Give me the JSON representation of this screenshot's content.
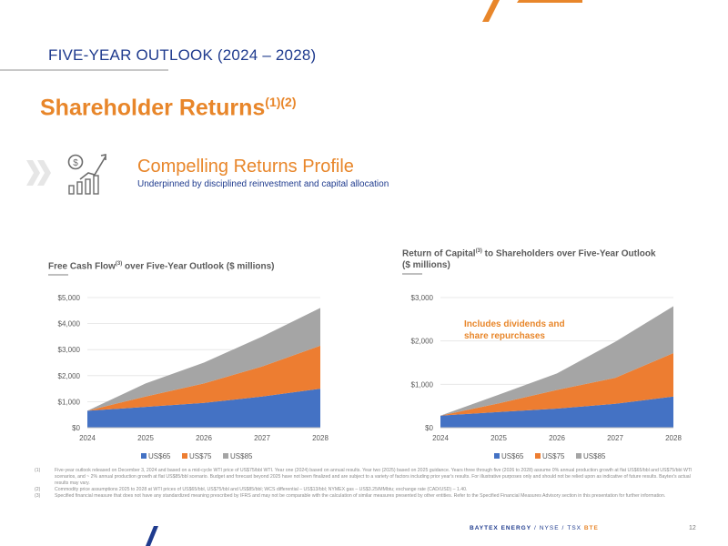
{
  "header": {
    "section_title": "FIVE-YEAR OUTLOOK (2024 – 2028)",
    "main_title": "Shareholder Returns",
    "main_title_sup": "(1)(2)"
  },
  "profile": {
    "title": "Compelling Returns Profile",
    "subtitle": "Underpinned by disciplined reinvestment and capital allocation"
  },
  "colors": {
    "navy": "#1f3b8e",
    "orange": "#e8862a",
    "series_blue": "#4472c4",
    "series_orange": "#ed7d31",
    "series_gray": "#a5a5a5"
  },
  "chart_data": [
    {
      "type": "area",
      "title": "Free Cash Flow",
      "title_sup": "(3)",
      "title_suffix": " over Five-Year Outlook ($ millions)",
      "x": [
        "2024",
        "2025",
        "2026",
        "2027",
        "2028"
      ],
      "y_ticks": [
        "$0",
        "$1,000",
        "$2,000",
        "$3,000",
        "$4,000",
        "$5,000"
      ],
      "ylim": [
        0,
        5000
      ],
      "stacked": true,
      "series": [
        {
          "name": "US$65",
          "values": [
            650,
            800,
            950,
            1200,
            1500
          ]
        },
        {
          "name": "US$75",
          "values": [
            0,
            400,
            750,
            1150,
            1650
          ]
        },
        {
          "name": "US$85",
          "values": [
            0,
            500,
            800,
            1150,
            1450
          ]
        }
      ],
      "legend": "bottom"
    },
    {
      "type": "area",
      "title": "Return of Capital",
      "title_sup": "(3)",
      "title_suffix": " to Shareholders over Five-Year Outlook ($ millions)",
      "x": [
        "2024",
        "2025",
        "2026",
        "2027",
        "2028"
      ],
      "y_ticks": [
        "$0",
        "$1,000",
        "$2,000",
        "$3,000"
      ],
      "ylim": [
        0,
        3000
      ],
      "stacked": true,
      "series": [
        {
          "name": "US$65",
          "values": [
            280,
            360,
            440,
            550,
            720
          ]
        },
        {
          "name": "US$75",
          "values": [
            0,
            200,
            430,
            600,
            1000
          ]
        },
        {
          "name": "US$85",
          "values": [
            0,
            200,
            380,
            830,
            1080
          ]
        }
      ],
      "annotation": "Includes dividends and share repurchases",
      "legend": "bottom"
    }
  ],
  "footnotes": [
    {
      "num": "(1)",
      "text": "Five-year outlook released on December 3, 2024 and based on a mid-cycle WTI price of US$75/bbl WTI. Year one (2024) based on annual results. Year two (2025) based on 2025 guidance. Years three through five (2026 to 2028) assume 0% annual production growth at flat US$65/bbl and US$75/bbl WTI scenarios, and ~ 2% annual production growth at flat US$85/bbl scenario. Budget and forecast beyond 2025 have not been finalized and are subject to a variety of factors including prior year's results. For illustrative purposes only and should not be relied upon as indicative of future results. Baytex's actual results may vary."
    },
    {
      "num": "(2)",
      "text": "Commodity price assumptions 2025 to 2028 at WTI prices of US$65/bbl, US$75/bbl and US$85/bbl; WCS differential – US$13/bbl; NYMEX gas – US$3.25/MMbtu; exchange rate (CAD/USD) – 1.40."
    },
    {
      "num": "(3)",
      "text": "Specified financial measure that does not have any standardized meaning prescribed by IFRS and may not be comparable with the calculation of similar measures presented by other entities. Refer to the Specified Financial Measures Advisory section in this presentation for further information."
    }
  ],
  "footer": {
    "company": "BAYTEX ENERGY",
    "exchange1": "NYSE",
    "exchange2": "TSX",
    "ticker": "BTE",
    "page": "12"
  }
}
